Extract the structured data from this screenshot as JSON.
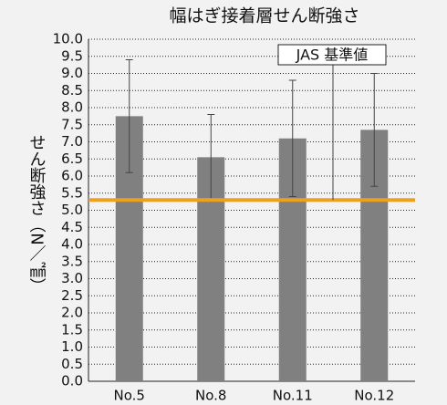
{
  "chart_data": {
    "type": "bar",
    "title": "幅はぎ接着層せん断強さ",
    "y_label": "せん断強さ（N／㎟）",
    "categories": [
      "No.5",
      "No.8",
      "No.11",
      "No.12"
    ],
    "values": [
      7.75,
      6.55,
      7.1,
      7.35
    ],
    "errors": [
      1.65,
      1.25,
      1.7,
      1.65
    ],
    "color": "#808080",
    "ylim": [
      0,
      10
    ],
    "yticks": [
      {
        "value": 0,
        "label": "0.0"
      },
      0.5,
      {
        "value": 1,
        "label": "1.0"
      },
      1.5,
      {
        "value": 2,
        "label": "2.0"
      },
      2.5,
      {
        "value": 3,
        "label": "3.0"
      },
      3.5,
      {
        "value": 4,
        "label": "4.0"
      },
      4.5,
      {
        "value": 5,
        "label": "5.0"
      },
      5.5,
      {
        "value": 6,
        "label": "6.0"
      },
      6.5,
      {
        "value": 7,
        "label": "7.0"
      },
      7.5,
      {
        "value": 8,
        "label": "8.0"
      },
      8.5,
      {
        "value": 9,
        "label": "9.0"
      },
      9.5,
      {
        "value": 10,
        "label": "10.0"
      }
    ],
    "grid": true,
    "reference_line": {
      "value": 5.3,
      "label": "JAS 基準値",
      "color": "#f0a020"
    }
  }
}
